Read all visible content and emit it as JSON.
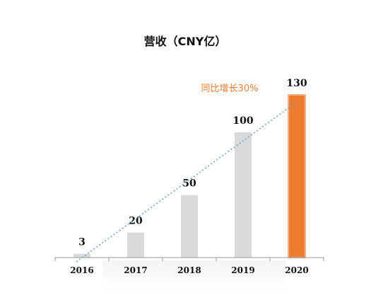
{
  "chart_data": {
    "type": "bar",
    "title": "营收（CNY亿）",
    "categories": [
      "2016",
      "2017",
      "2018",
      "2019",
      "2020"
    ],
    "values": [
      3,
      20,
      50,
      100,
      130
    ],
    "ylim": [
      0,
      130
    ],
    "grid": false,
    "legend": "none",
    "annotation": "同比增长30%",
    "colors": {
      "bar": "#d9d9d9",
      "highlight_bar": "#ed7d31",
      "highlight_border": "#f4b183",
      "trendline": "#5b9bd5",
      "annotation": "#ed7d31",
      "axis": "#999999"
    },
    "highlight_category": "2020"
  }
}
